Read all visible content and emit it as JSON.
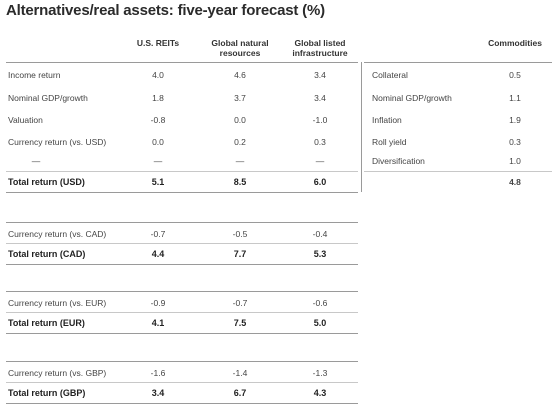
{
  "title": "Alternatives/real assets: five-year forecast (%)",
  "headers": {
    "col1": "U.S. REITs",
    "col2_line1": "Global natural",
    "col2_line2": "resources",
    "col3_line1": "Global listed",
    "col3_line2": "infrastructure",
    "col4": "Commodities"
  },
  "main_rows": [
    {
      "label": "Income return",
      "v1": "4.0",
      "v2": "4.6",
      "v3": "3.4"
    },
    {
      "label": "Nominal GDP/growth",
      "v1": "1.8",
      "v2": "3.7",
      "v3": "3.4"
    },
    {
      "label": "Valuation",
      "v1": "-0.8",
      "v2": "0.0",
      "v3": "-1.0"
    },
    {
      "label": "Currency return (vs. USD)",
      "v1": "0.0",
      "v2": "0.2",
      "v3": "0.3"
    },
    {
      "label": "—",
      "v1": "—",
      "v2": "—",
      "v3": "—"
    }
  ],
  "total_usd": {
    "label": "Total return (USD)",
    "v1": "5.1",
    "v2": "8.5",
    "v3": "6.0"
  },
  "commodities_rows": [
    {
      "label": "Collateral",
      "value": "0.5"
    },
    {
      "label": "Nominal GDP/growth",
      "value": "1.1"
    },
    {
      "label": "Inflation",
      "value": "1.9"
    },
    {
      "label": "Roll yield",
      "value": "0.3"
    },
    {
      "label": "Diversification",
      "value": "1.0"
    }
  ],
  "commodities_total": "4.8",
  "cad": {
    "currency": {
      "label": "Currency return (vs. CAD)",
      "v1": "-0.7",
      "v2": "-0.5",
      "v3": "-0.4"
    },
    "total": {
      "label": "Total return (CAD)",
      "v1": "4.4",
      "v2": "7.7",
      "v3": "5.3"
    }
  },
  "eur": {
    "currency": {
      "label": "Currency return (vs. EUR)",
      "v1": "-0.9",
      "v2": "-0.7",
      "v3": "-0.6"
    },
    "total": {
      "label": "Total return (EUR)",
      "v1": "4.1",
      "v2": "7.5",
      "v3": "5.0"
    }
  },
  "gbp": {
    "currency": {
      "label": "Currency return (vs. GBP)",
      "v1": "-1.6",
      "v2": "-1.4",
      "v3": "-1.3"
    },
    "total": {
      "label": "Total return (GBP)",
      "v1": "3.4",
      "v2": "6.7",
      "v3": "4.3"
    }
  }
}
